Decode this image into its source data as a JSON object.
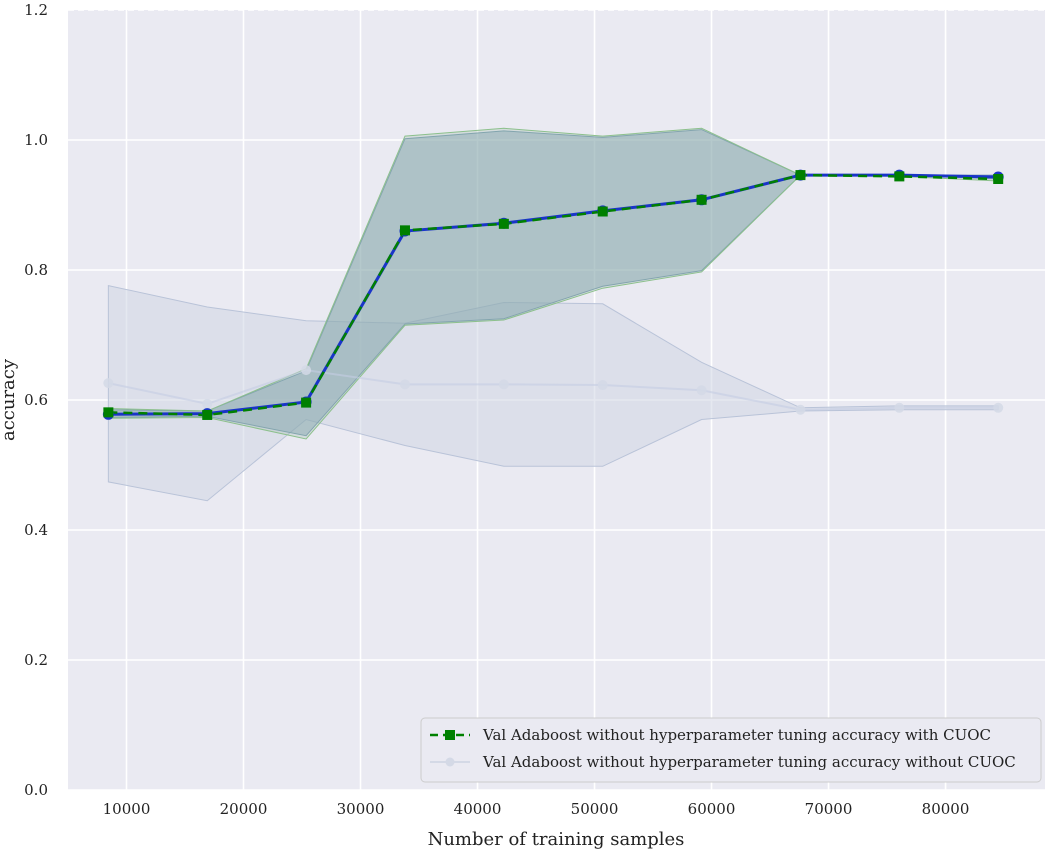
{
  "chart_data": {
    "type": "line",
    "title": "",
    "xlabel": "Number of training samples",
    "ylabel": "accuracy",
    "xlim": [
      5000,
      88500
    ],
    "ylim": [
      0,
      1.2
    ],
    "x_ticks": [
      10000,
      20000,
      30000,
      40000,
      50000,
      60000,
      70000,
      80000
    ],
    "x_tick_labels": [
      "10000",
      "20000",
      "30000",
      "40000",
      "50000",
      "60000",
      "70000",
      "80000"
    ],
    "y_ticks": [
      0.0,
      0.2,
      0.4,
      0.6,
      0.8,
      1.0,
      1.2
    ],
    "y_tick_labels": [
      "0.0",
      "0.2",
      "0.4",
      "0.6",
      "0.8",
      "1.0",
      "1.2"
    ],
    "grid": true,
    "legend_position": "lower-right",
    "x": [
      8450,
      16900,
      25350,
      33800,
      42250,
      50700,
      59150,
      67600,
      76050,
      84500
    ],
    "series": [
      {
        "name": "Val Adaboost without hyperparameter tuning accuracy with CUOC",
        "values": [
          0.581,
          0.577,
          0.596,
          0.861,
          0.871,
          0.89,
          0.908,
          0.946,
          0.944,
          0.94
        ],
        "band_low": [
          0.572,
          0.573,
          0.54,
          0.715,
          0.723,
          0.772,
          0.797,
          0.946,
          0.944,
          0.937
        ],
        "band_high": [
          0.587,
          0.583,
          0.648,
          1.006,
          1.018,
          1.006,
          1.018,
          0.946,
          0.946,
          0.944
        ],
        "color": "#008000",
        "marker": "square",
        "linestyle": "dashed",
        "opacity": 1
      },
      {
        "values": [
          0.578,
          0.579,
          0.597,
          0.86,
          0.872,
          0.891,
          0.908,
          0.946,
          0.946,
          0.943
        ],
        "band_low": [
          0.573,
          0.575,
          0.545,
          0.717,
          0.725,
          0.775,
          0.799,
          0.946,
          0.946,
          0.94
        ],
        "band_high": [
          0.585,
          0.583,
          0.645,
          1.002,
          1.014,
          1.004,
          1.016,
          0.946,
          0.946,
          0.946
        ],
        "color": "#1a35c8",
        "marker": "circle",
        "linestyle": "solid",
        "opacity": 1
      },
      {
        "name": "Val Adaboost without hyperparameter tuning accuracy without CUOC",
        "values": [
          0.626,
          0.594,
          0.646,
          0.624,
          0.624,
          0.623,
          0.615,
          0.585,
          0.588,
          0.588
        ],
        "band_low": [
          0.474,
          0.445,
          0.57,
          0.53,
          0.498,
          0.498,
          0.57,
          0.583,
          0.585,
          0.585
        ],
        "band_high": [
          0.776,
          0.743,
          0.722,
          0.718,
          0.75,
          0.748,
          0.658,
          0.588,
          0.591,
          0.591
        ],
        "color": "#c5cde2",
        "marker": "circle",
        "linestyle": "solid",
        "opacity": 0.6
      }
    ],
    "colors": {
      "plot_background": "#eaeaf2",
      "grid": "#ffffff",
      "band_with": "#8faabf",
      "band_without": "#d0d6e4"
    }
  }
}
